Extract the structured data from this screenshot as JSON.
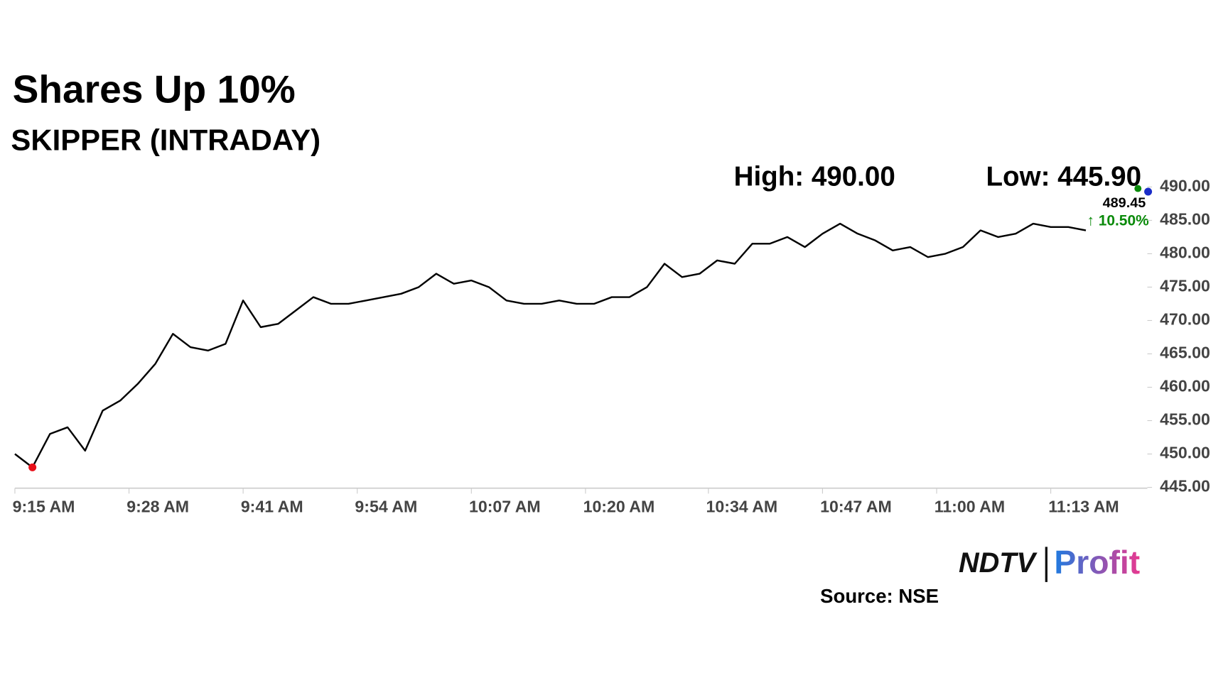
{
  "chart_data": {
    "type": "line",
    "title": "Shares Up 10%",
    "subtitle": "SKIPPER (INTRADAY)",
    "high_label": "High: 490.00",
    "low_label": "Low: 445.90",
    "last_price": "489.45",
    "change": "10.50%",
    "source": "Source: NSE",
    "logo": {
      "left": "NDTV",
      "right": "Profit"
    },
    "color": "#000000",
    "x": [
      "9:15 AM",
      "9:17 AM",
      "9:19 AM",
      "9:21 AM",
      "9:23 AM",
      "9:25 AM",
      "9:27 AM",
      "9:29 AM",
      "9:31 AM",
      "9:33 AM",
      "9:35 AM",
      "9:37 AM",
      "9:39 AM",
      "9:41 AM",
      "9:43 AM",
      "9:45 AM",
      "9:47 AM",
      "9:49 AM",
      "9:51 AM",
      "9:53 AM",
      "9:55 AM",
      "9:57 AM",
      "9:59 AM",
      "10:01 AM",
      "10:03 AM",
      "10:05 AM",
      "10:07 AM",
      "10:09 AM",
      "10:11 AM",
      "10:13 AM",
      "10:15 AM",
      "10:17 AM",
      "10:19 AM",
      "10:21 AM",
      "10:23 AM",
      "10:25 AM",
      "10:27 AM",
      "10:29 AM",
      "10:31 AM",
      "10:33 AM",
      "10:35 AM",
      "10:37 AM",
      "10:39 AM",
      "10:41 AM",
      "10:43 AM",
      "10:45 AM",
      "10:47 AM",
      "10:49 AM",
      "10:51 AM",
      "10:53 AM",
      "10:55 AM",
      "10:57 AM",
      "10:59 AM",
      "11:01 AM",
      "11:03 AM",
      "11:05 AM",
      "11:07 AM",
      "11:09 AM",
      "11:11 AM",
      "11:13 AM",
      "11:15 AM",
      "11:17 AM"
    ],
    "values": [
      450,
      448,
      453,
      454,
      450.5,
      456.5,
      458,
      460.5,
      463.5,
      468,
      466,
      465.5,
      466.5,
      473,
      469,
      469.5,
      471.5,
      473.5,
      472.5,
      472.5,
      473,
      473.5,
      474,
      475,
      477,
      475.5,
      476,
      475,
      473,
      472.5,
      472.5,
      473,
      472.5,
      472.5,
      473.5,
      473.5,
      475,
      478.5,
      476.5,
      477,
      479,
      478.5,
      481.5,
      481.5,
      482.5,
      481,
      483,
      484.5,
      483,
      482,
      480.5,
      481,
      479.5,
      480,
      481,
      483.5,
      482.5,
      483,
      484.5,
      484,
      484,
      483.5
    ],
    "xlim": [
      "9:15 AM",
      "11:24 AM"
    ],
    "xticks": [
      "9:15 AM",
      "9:28 AM",
      "9:41 AM",
      "9:54 AM",
      "10:07 AM",
      "10:20 AM",
      "10:34 AM",
      "10:47 AM",
      "11:00 AM",
      "11:13 AM"
    ],
    "ylim": [
      445,
      490
    ],
    "yticks": [
      {
        "value": 445,
        "label": "445.00"
      },
      {
        "value": 450,
        "label": "450.00"
      },
      {
        "value": 455,
        "label": "455.00"
      },
      {
        "value": 460,
        "label": "460.00"
      },
      {
        "value": 465,
        "label": "465.00"
      },
      {
        "value": 470,
        "label": "470.00"
      },
      {
        "value": 475,
        "label": "475.00"
      },
      {
        "value": 480,
        "label": "480.00"
      },
      {
        "value": 485,
        "label": "485.00"
      },
      {
        "value": 490,
        "label": "490.00"
      }
    ]
  }
}
